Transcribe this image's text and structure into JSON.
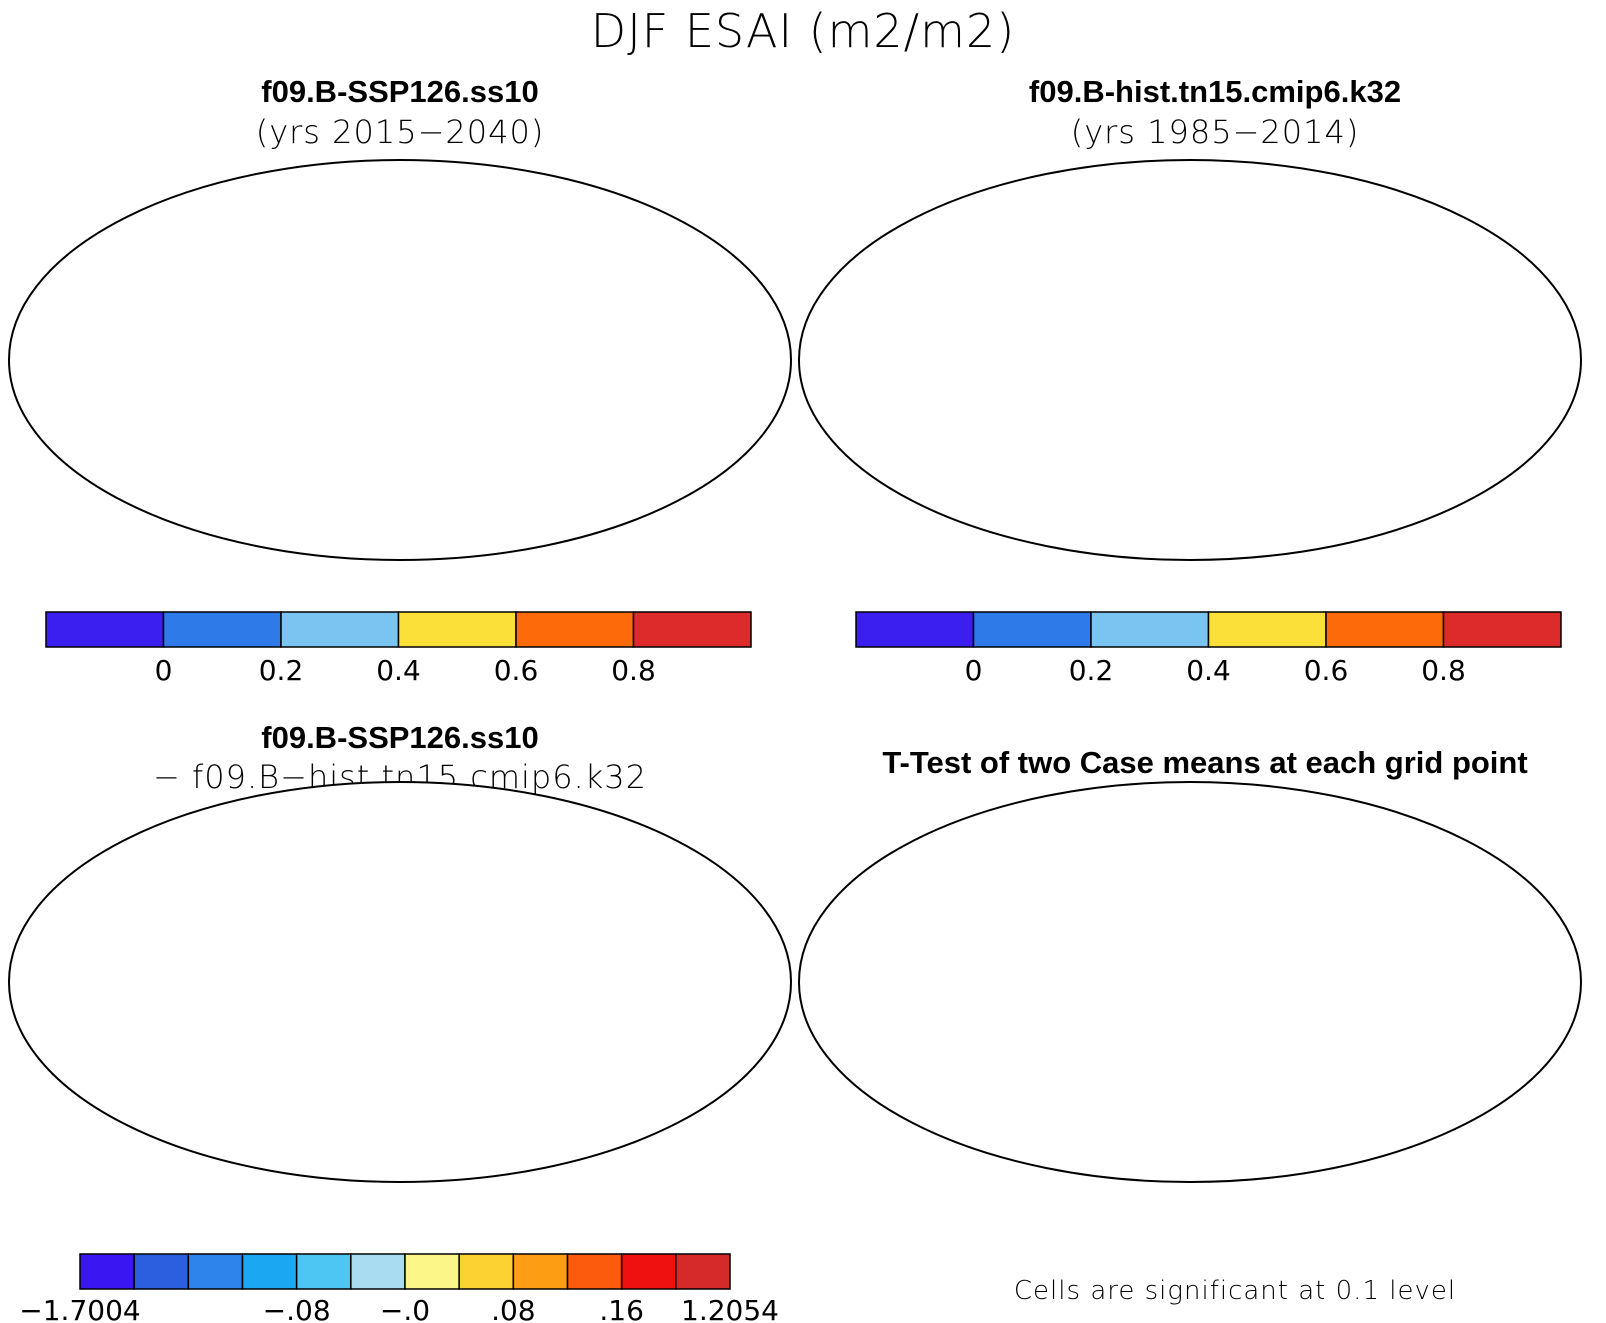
{
  "figure_title": "DJF ESAI (m2/m2)",
  "colors": {
    "bg": "#ffffff",
    "ocean": "#ffffff",
    "coast": "#000000",
    "significance": "#ff0000"
  },
  "panels": [
    {
      "id": "case",
      "title": "f09.B-SSP126.ss10",
      "subtitle": "(yrs 2015−2040)",
      "field": "abs",
      "colorbar": {
        "colors": [
          "#3b1ef0",
          "#2d7ae8",
          "#79c4f0",
          "#fbe03a",
          "#fc6a0a",
          "#dd2b2b"
        ],
        "ticks": [
          "0",
          "0.2",
          "0.4",
          "0.6",
          "0.8"
        ]
      }
    },
    {
      "id": "control",
      "title": "f09.B-hist.tn15.cmip6.k32",
      "subtitle": "(yrs 1985−2014)",
      "field": "abs",
      "colorbar": {
        "colors": [
          "#3b1ef0",
          "#2d7ae8",
          "#79c4f0",
          "#fbe03a",
          "#fc6a0a",
          "#dd2b2b"
        ],
        "ticks": [
          "0",
          "0.2",
          "0.4",
          "0.6",
          "0.8"
        ]
      }
    },
    {
      "id": "difference",
      "title": "f09.B-SSP126.ss10",
      "subtitle": "− f09.B−hist.tn15.cmip6.k32",
      "field": "diff",
      "colorbar": {
        "colors": [
          "#3a16f2",
          "#2b5fe0",
          "#2f84ec",
          "#1aa8f2",
          "#4ec6f4",
          "#a9dcf0",
          "#fcf688",
          "#fcd232",
          "#fc9d14",
          "#fc5a0c",
          "#ef1010",
          "#d42a2a"
        ],
        "ticks": [
          "−1.7004",
          "−.08",
          "−.0",
          ".08",
          ".16",
          "1.2054"
        ]
      }
    },
    {
      "id": "ttest",
      "title": "T-Test of two Case means at each grid point",
      "field": "sig",
      "note": "Cells are significant at 0.1 level"
    }
  ]
}
